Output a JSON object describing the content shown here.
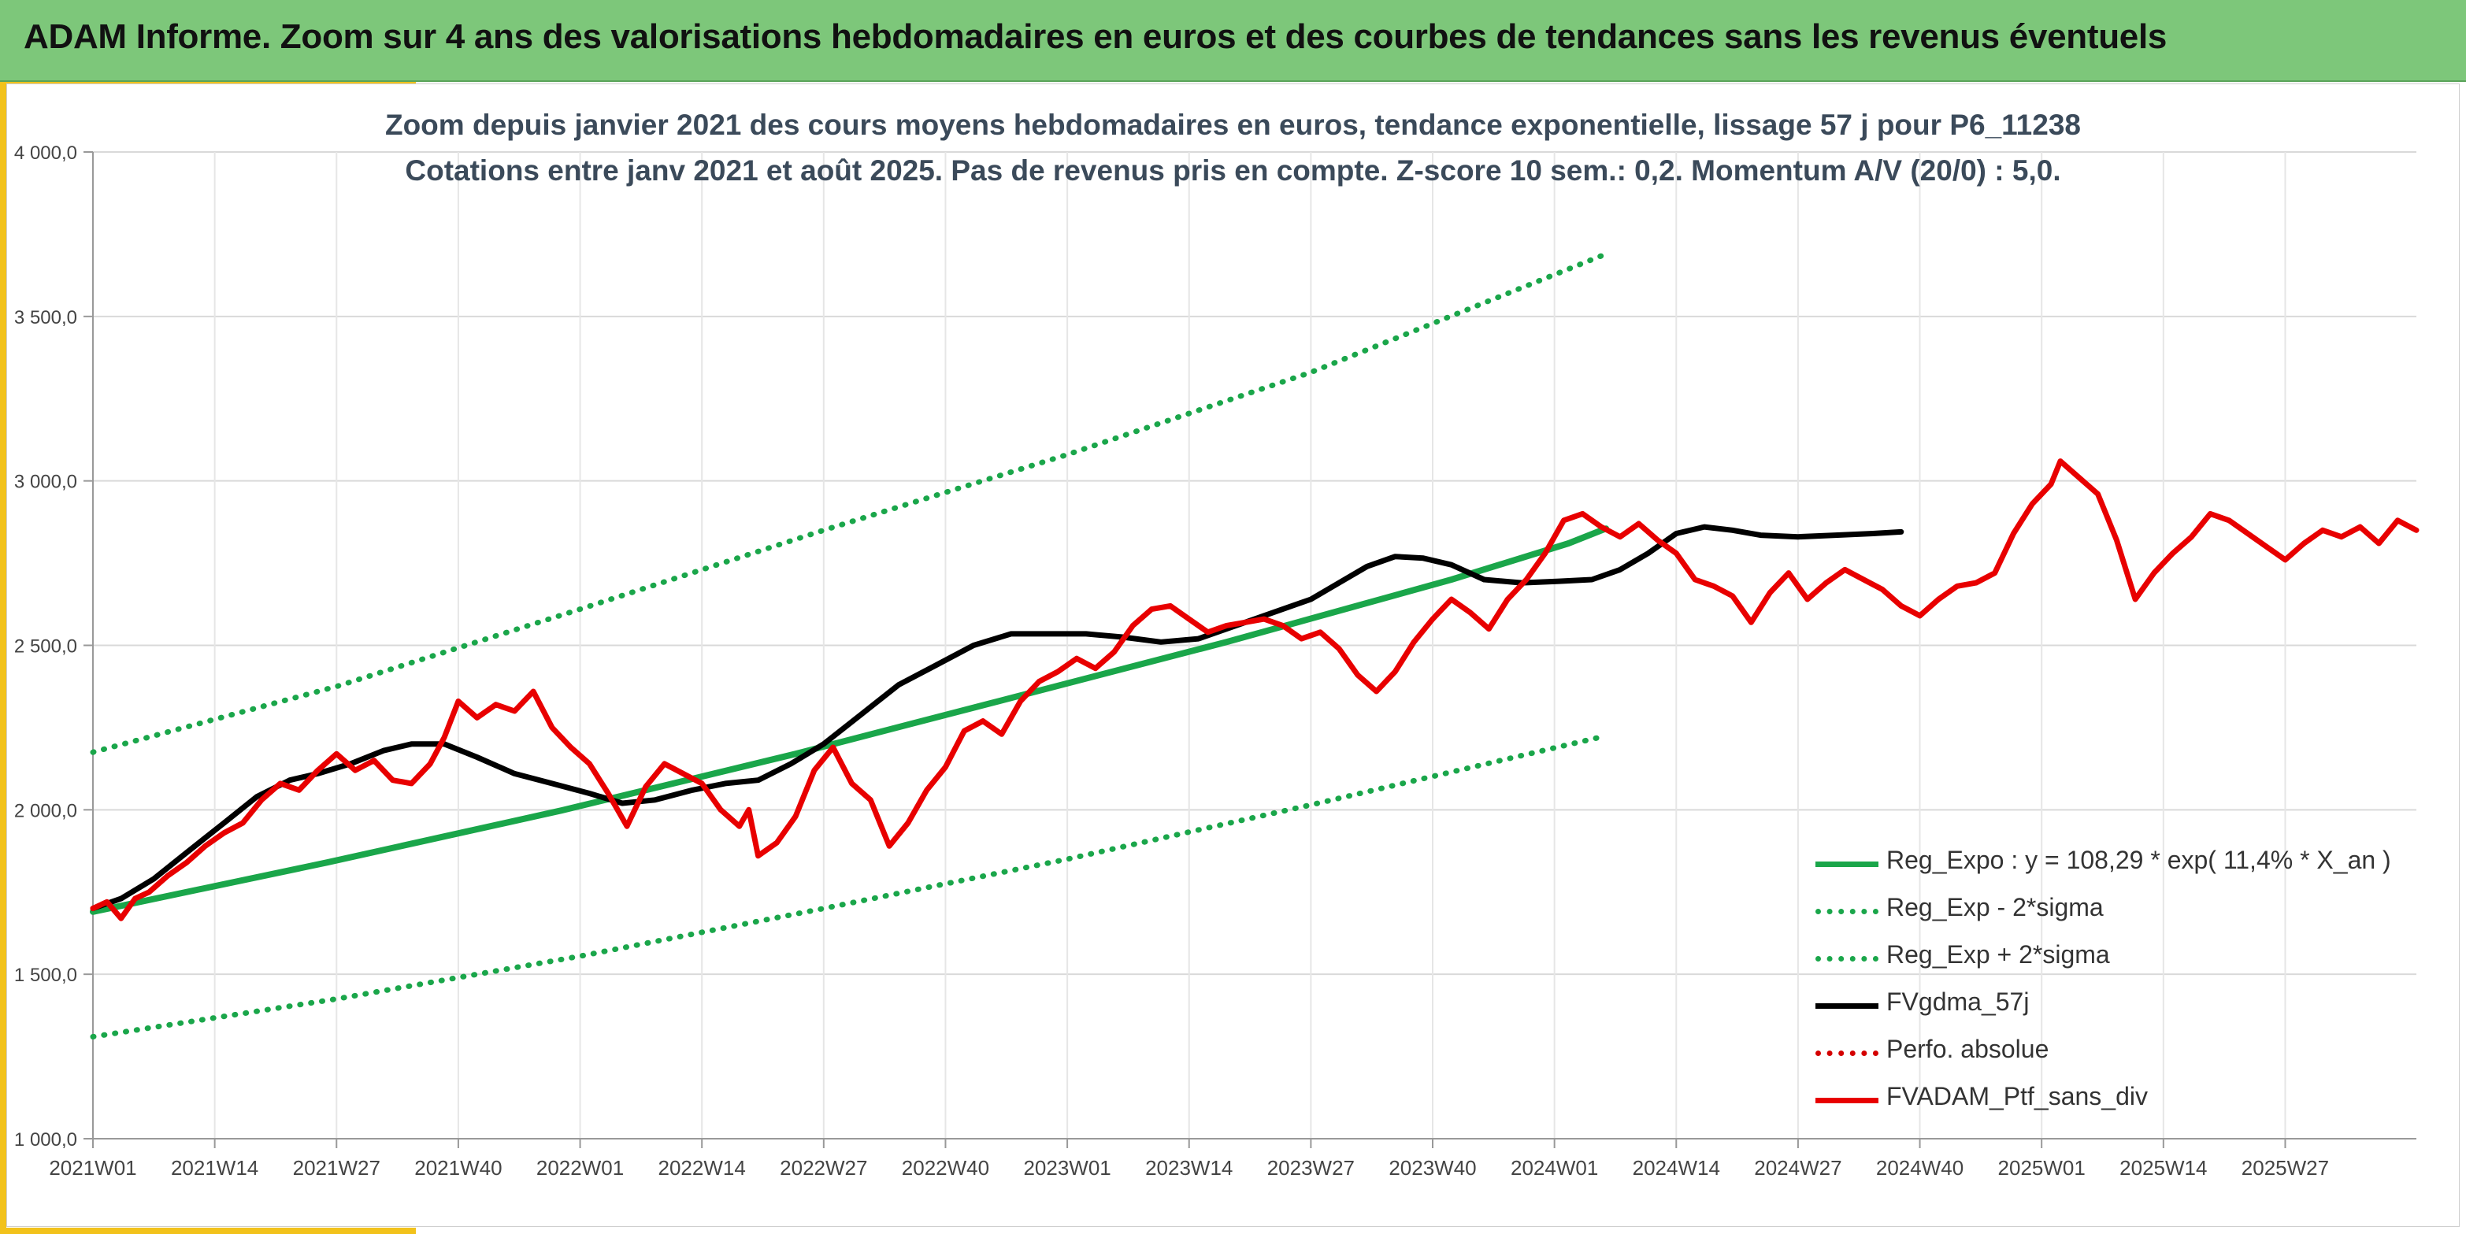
{
  "banner": {
    "title": "ADAM Informe. Zoom sur 4 ans des valorisations hebdomadaires en euros et des courbes de tendances sans les revenus éventuels"
  },
  "colors": {
    "banner_bg": "#7dc77a",
    "accent": "#f2c21b",
    "reg_expo": "#1aa64a",
    "sigma": "#1aa64a",
    "gdma": "#000000",
    "perfo": "#d40000",
    "ptf": "#e80000"
  },
  "chart_data": {
    "type": "line",
    "title": "Zoom depuis janvier 2021 des cours moyens hebdomadaires en euros, tendance exponentielle, lissage 57 j pour P6_11238",
    "subtitle": "Cotations entre janv 2021 et août 2025. Pas de revenus pris en compte. Z-score 10 sem.: 0,2. Momentum A/V (20/0) : 5,0.",
    "xlabel": "",
    "ylabel": "",
    "ylim": [
      1000,
      4000
    ],
    "y_ticks": [
      1000,
      1500,
      2000,
      2500,
      3000,
      3500,
      4000
    ],
    "y_tick_labels": [
      "1 000,0",
      "1 500,0",
      "2 000,0",
      "2 500,0",
      "3 000,0",
      "3 500,0",
      "4 000,0"
    ],
    "x_ticks": [
      "2021W01",
      "2021W14",
      "2021W27",
      "2021W40",
      "2022W01",
      "2022W14",
      "2022W27",
      "2022W40",
      "2023W01",
      "2023W14",
      "2023W27",
      "2023W40",
      "2024W01",
      "2024W14",
      "2024W27",
      "2024W40",
      "2025W01",
      "2025W14",
      "2025W27"
    ],
    "grid": true,
    "legend_position": "bottom-right",
    "series": [
      {
        "name": "Reg_Expo : y = 108,29 * exp( 11,4% *  X_an )",
        "style": "solid-green",
        "points": [
          [
            0,
            1690
          ],
          [
            50,
            1840
          ],
          [
            100,
            1998
          ],
          [
            150,
            2170
          ],
          [
            200,
            2355
          ],
          [
            242,
            2510
          ],
          [
            290,
            2700
          ],
          [
            315,
            2810
          ],
          [
            323,
            2855
          ]
        ]
      },
      {
        "name": "Reg_Exp - 2*sigma",
        "style": "dotted-green",
        "points": [
          [
            0,
            1310
          ],
          [
            52,
            1425
          ],
          [
            104,
            1555
          ],
          [
            156,
            1700
          ],
          [
            208,
            1850
          ],
          [
            260,
            2015
          ],
          [
            323,
            2225
          ]
        ]
      },
      {
        "name": "Reg_Exp + 2*sigma",
        "style": "dotted-green",
        "points": [
          [
            0,
            2175
          ],
          [
            52,
            2375
          ],
          [
            104,
            2610
          ],
          [
            156,
            2850
          ],
          [
            208,
            3080
          ],
          [
            260,
            3330
          ],
          [
            323,
            3690
          ]
        ]
      },
      {
        "name": "FVgdma_57j",
        "style": "solid-black",
        "points": [
          [
            0,
            1700
          ],
          [
            6,
            1730
          ],
          [
            13,
            1790
          ],
          [
            20,
            1870
          ],
          [
            28,
            1960
          ],
          [
            35,
            2040
          ],
          [
            42,
            2090
          ],
          [
            48,
            2110
          ],
          [
            55,
            2140
          ],
          [
            62,
            2180
          ],
          [
            68,
            2200
          ],
          [
            75,
            2200
          ],
          [
            82,
            2160
          ],
          [
            90,
            2110
          ],
          [
            98,
            2080
          ],
          [
            106,
            2050
          ],
          [
            113,
            2020
          ],
          [
            120,
            2030
          ],
          [
            128,
            2060
          ],
          [
            135,
            2080
          ],
          [
            142,
            2090
          ],
          [
            149,
            2140
          ],
          [
            156,
            2200
          ],
          [
            164,
            2290
          ],
          [
            172,
            2380
          ],
          [
            180,
            2440
          ],
          [
            188,
            2500
          ],
          [
            196,
            2535
          ],
          [
            204,
            2535
          ],
          [
            212,
            2535
          ],
          [
            220,
            2525
          ],
          [
            228,
            2510
          ],
          [
            236,
            2520
          ],
          [
            244,
            2560
          ],
          [
            252,
            2600
          ],
          [
            260,
            2640
          ],
          [
            266,
            2690
          ],
          [
            272,
            2740
          ],
          [
            278,
            2770
          ],
          [
            284,
            2765
          ],
          [
            290,
            2745
          ],
          [
            297,
            2700
          ],
          [
            305,
            2690
          ],
          [
            313,
            2695
          ],
          [
            320,
            2700
          ],
          [
            326,
            2730
          ],
          [
            332,
            2780
          ],
          [
            338,
            2840
          ],
          [
            344,
            2860
          ],
          [
            350,
            2850
          ],
          [
            356,
            2835
          ],
          [
            364,
            2830
          ],
          [
            372,
            2835
          ],
          [
            380,
            2840
          ],
          [
            386,
            2845
          ]
        ]
      },
      {
        "name": "Perfo. absolue",
        "style": "dotted-red",
        "points": []
      },
      {
        "name": "FVADAM_Ptf_sans_div",
        "style": "solid-red",
        "points": [
          [
            0,
            1700
          ],
          [
            3,
            1720
          ],
          [
            6,
            1670
          ],
          [
            9,
            1730
          ],
          [
            12,
            1750
          ],
          [
            16,
            1800
          ],
          [
            20,
            1840
          ],
          [
            24,
            1890
          ],
          [
            28,
            1930
          ],
          [
            32,
            1960
          ],
          [
            36,
            2030
          ],
          [
            40,
            2080
          ],
          [
            44,
            2060
          ],
          [
            48,
            2120
          ],
          [
            52,
            2170
          ],
          [
            56,
            2120
          ],
          [
            60,
            2150
          ],
          [
            64,
            2090
          ],
          [
            68,
            2080
          ],
          [
            72,
            2140
          ],
          [
            75,
            2220
          ],
          [
            78,
            2330
          ],
          [
            82,
            2280
          ],
          [
            86,
            2320
          ],
          [
            90,
            2300
          ],
          [
            94,
            2360
          ],
          [
            98,
            2250
          ],
          [
            102,
            2190
          ],
          [
            106,
            2140
          ],
          [
            110,
            2050
          ],
          [
            114,
            1950
          ],
          [
            118,
            2070
          ],
          [
            122,
            2140
          ],
          [
            126,
            2110
          ],
          [
            130,
            2080
          ],
          [
            134,
            2000
          ],
          [
            138,
            1950
          ],
          [
            140,
            2000
          ],
          [
            142,
            1860
          ],
          [
            146,
            1900
          ],
          [
            150,
            1980
          ],
          [
            154,
            2120
          ],
          [
            158,
            2190
          ],
          [
            162,
            2080
          ],
          [
            166,
            2030
          ],
          [
            170,
            1890
          ],
          [
            174,
            1960
          ],
          [
            178,
            2060
          ],
          [
            182,
            2130
          ],
          [
            186,
            2240
          ],
          [
            190,
            2270
          ],
          [
            194,
            2230
          ],
          [
            198,
            2330
          ],
          [
            202,
            2390
          ],
          [
            206,
            2420
          ],
          [
            210,
            2460
          ],
          [
            214,
            2430
          ],
          [
            218,
            2480
          ],
          [
            222,
            2560
          ],
          [
            226,
            2610
          ],
          [
            230,
            2620
          ],
          [
            234,
            2580
          ],
          [
            238,
            2540
          ],
          [
            242,
            2560
          ],
          [
            246,
            2570
          ],
          [
            250,
            2580
          ],
          [
            254,
            2560
          ],
          [
            258,
            2520
          ],
          [
            262,
            2540
          ],
          [
            266,
            2490
          ],
          [
            270,
            2410
          ],
          [
            274,
            2360
          ],
          [
            278,
            2420
          ],
          [
            282,
            2510
          ],
          [
            286,
            2580
          ],
          [
            290,
            2640
          ],
          [
            294,
            2600
          ],
          [
            298,
            2550
          ],
          [
            302,
            2640
          ],
          [
            306,
            2700
          ],
          [
            310,
            2780
          ],
          [
            314,
            2880
          ],
          [
            318,
            2900
          ],
          [
            322,
            2860
          ],
          [
            326,
            2830
          ],
          [
            330,
            2870
          ],
          [
            334,
            2820
          ],
          [
            338,
            2780
          ],
          [
            342,
            2700
          ],
          [
            346,
            2680
          ],
          [
            350,
            2650
          ],
          [
            354,
            2570
          ],
          [
            358,
            2660
          ],
          [
            362,
            2720
          ],
          [
            366,
            2640
          ],
          [
            370,
            2690
          ],
          [
            374,
            2730
          ],
          [
            378,
            2700
          ],
          [
            382,
            2670
          ],
          [
            386,
            2620
          ],
          [
            390,
            2590
          ],
          [
            394,
            2640
          ],
          [
            398,
            2680
          ],
          [
            402,
            2690
          ],
          [
            406,
            2720
          ],
          [
            410,
            2840
          ],
          [
            414,
            2930
          ],
          [
            418,
            2990
          ],
          [
            420,
            3060
          ],
          [
            424,
            3010
          ],
          [
            428,
            2960
          ],
          [
            432,
            2820
          ],
          [
            436,
            2640
          ],
          [
            440,
            2720
          ],
          [
            444,
            2780
          ],
          [
            448,
            2830
          ],
          [
            452,
            2900
          ],
          [
            456,
            2880
          ],
          [
            460,
            2840
          ],
          [
            464,
            2800
          ],
          [
            468,
            2760
          ],
          [
            472,
            2810
          ],
          [
            476,
            2850
          ],
          [
            480,
            2830
          ],
          [
            484,
            2860
          ],
          [
            488,
            2810
          ],
          [
            492,
            2880
          ],
          [
            496,
            2850
          ]
        ]
      }
    ]
  }
}
